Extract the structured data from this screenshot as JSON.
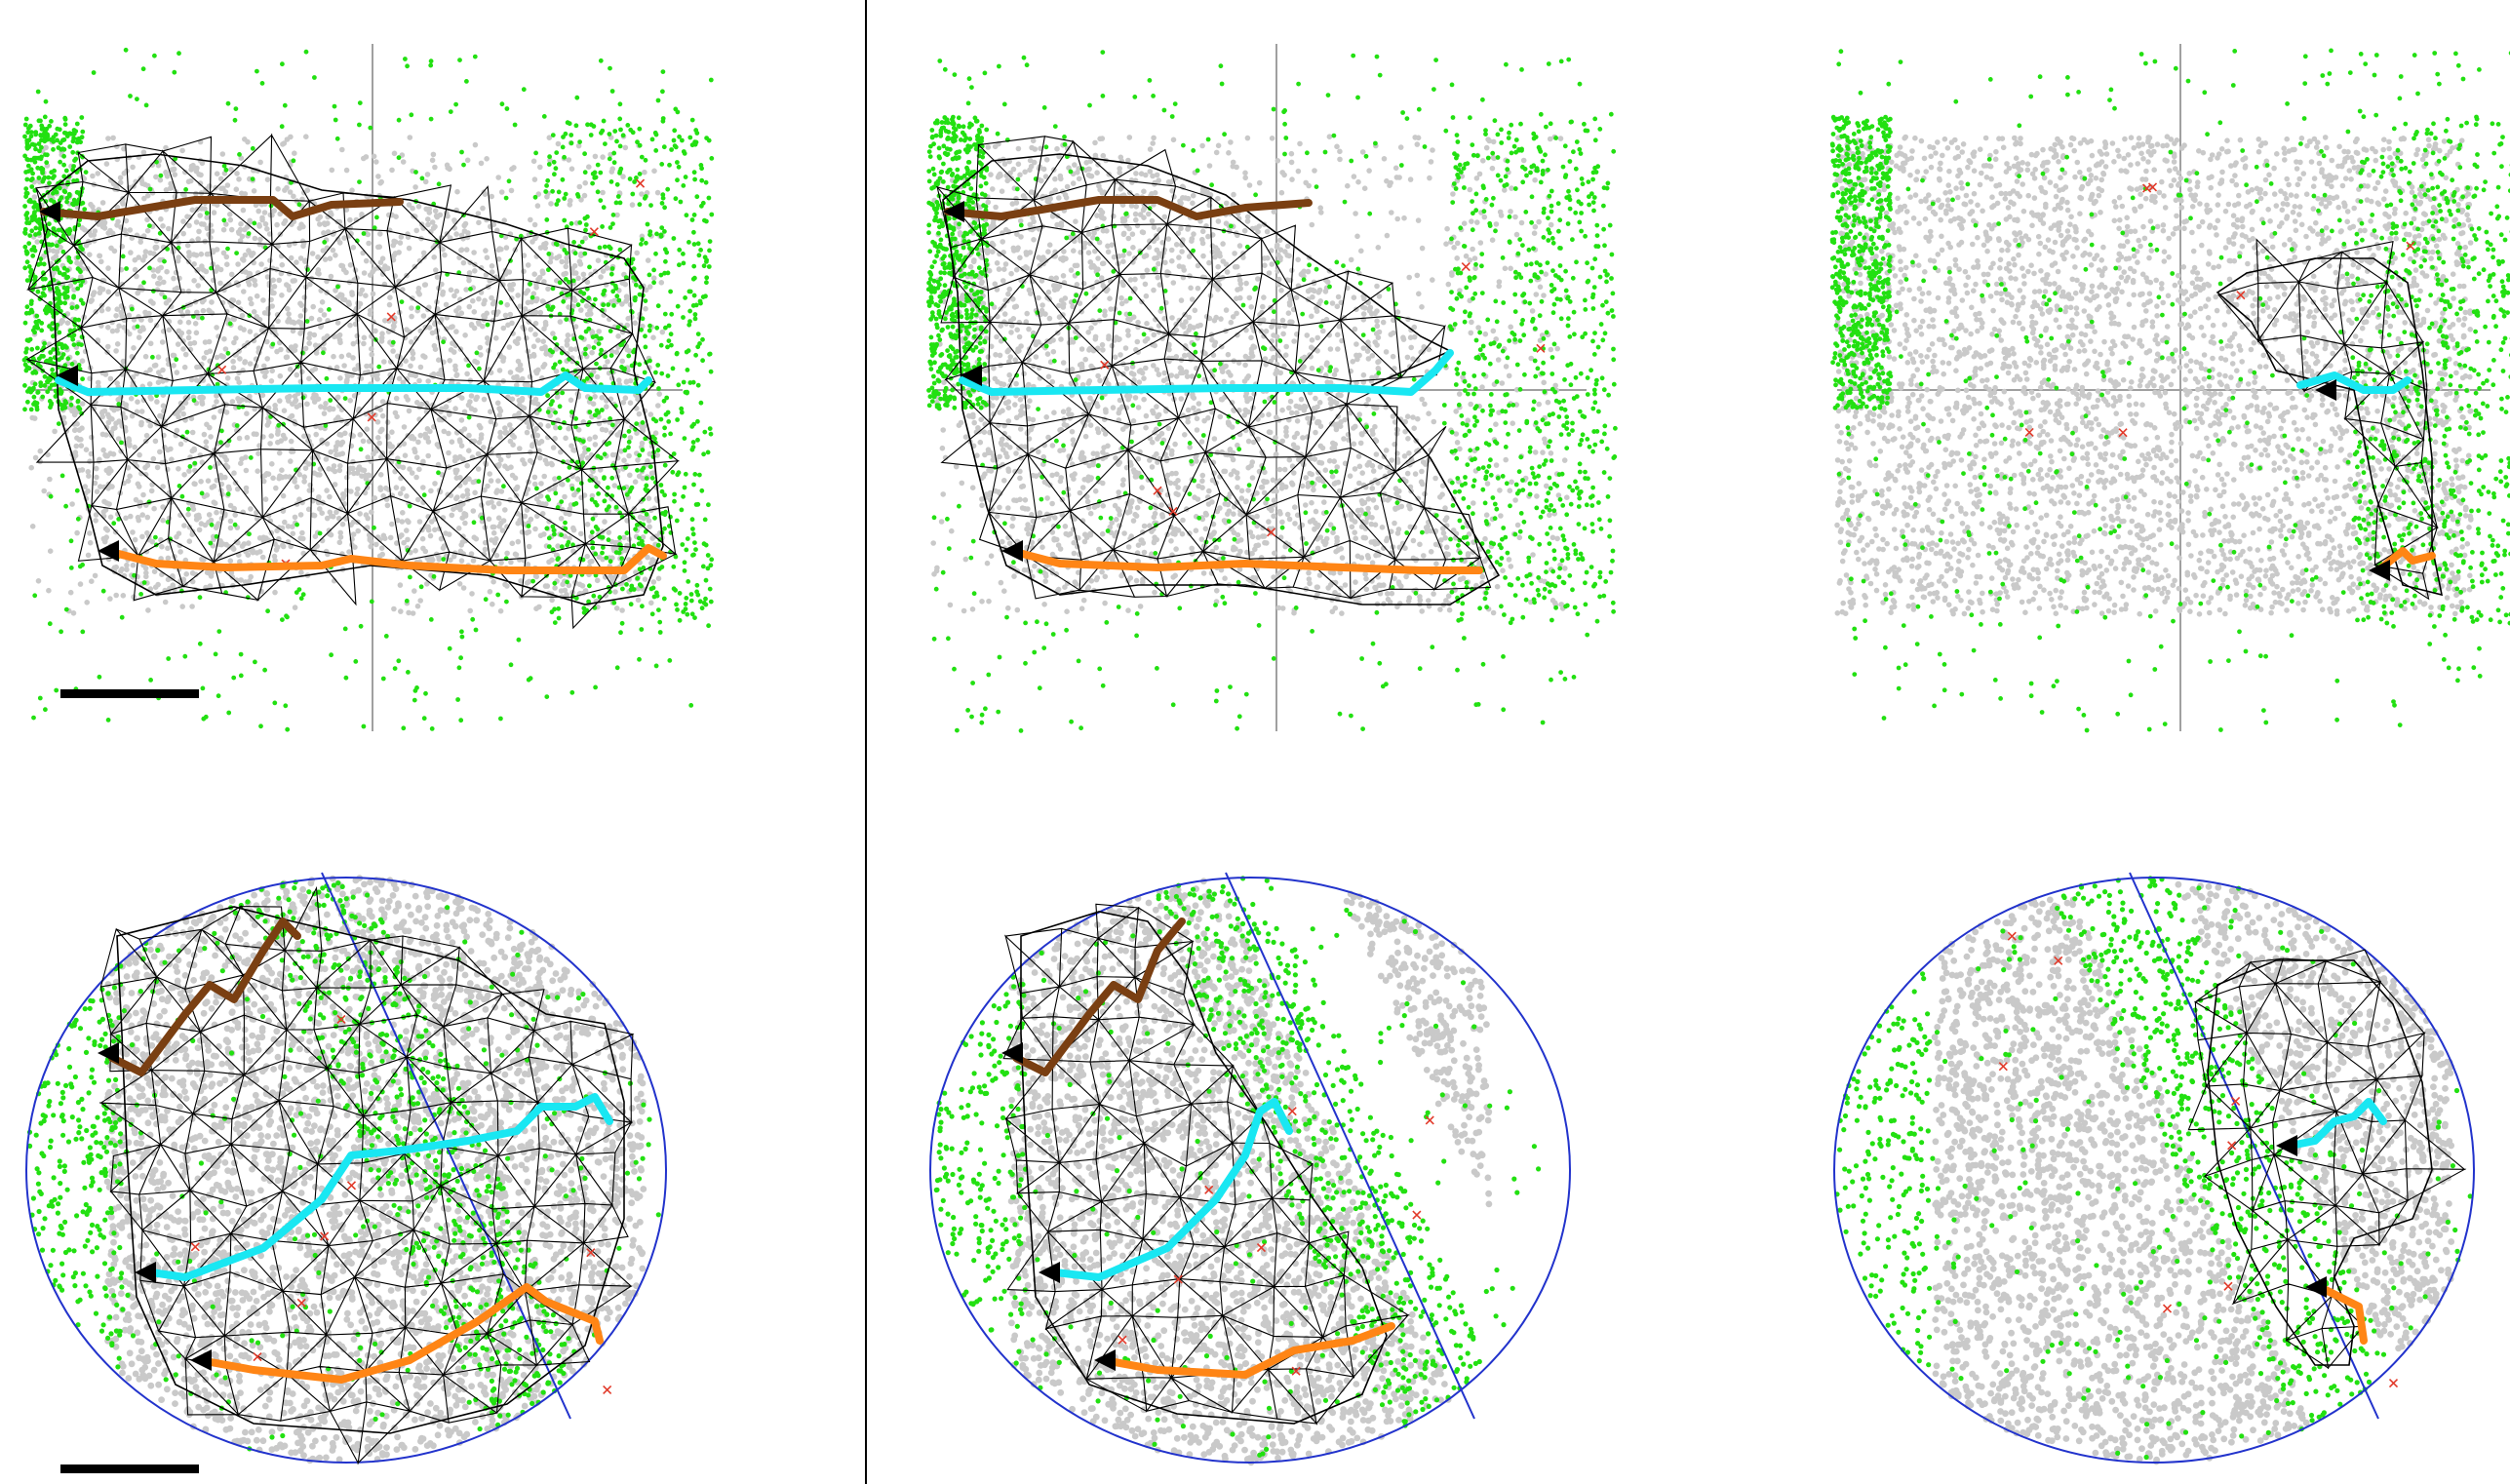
{
  "figure": {
    "panels": [
      {
        "row": "top",
        "col": 1,
        "name": "top-left"
      },
      {
        "row": "top",
        "col": 2,
        "name": "top-middle"
      },
      {
        "row": "top",
        "col": 3,
        "name": "top-right"
      },
      {
        "row": "bottom",
        "col": 1,
        "name": "bottom-left"
      },
      {
        "row": "bottom",
        "col": 2,
        "name": "bottom-middle"
      },
      {
        "row": "bottom",
        "col": 3,
        "name": "bottom-right"
      }
    ],
    "colors": {
      "green_points": "#22e011",
      "gray_points": "#c9c9c9",
      "mesh": "#000000",
      "path_brown": "#7a3f12",
      "path_cyan": "#19e7f2",
      "path_orange": "#ff8515",
      "axis": "#a0a0a0",
      "ellipse": "#2233cc",
      "marker_x": "#e23a2a"
    }
  }
}
